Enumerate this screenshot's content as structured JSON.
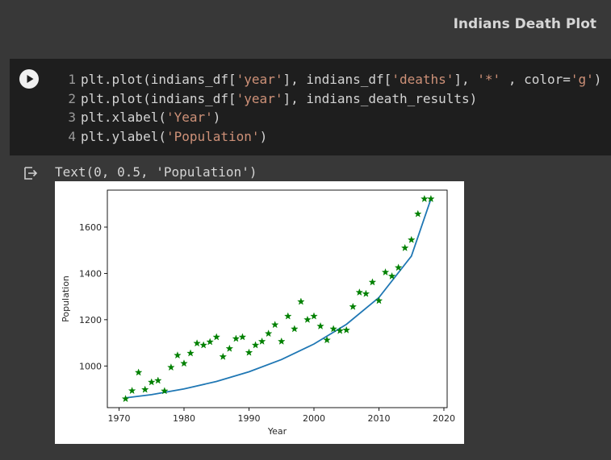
{
  "page": {
    "title": "Indians Death Plot"
  },
  "code_cell": {
    "lines": [
      {
        "n": "1",
        "parts": [
          [
            "plain",
            "plt.plot(indians_df["
          ],
          [
            "str",
            "'year'"
          ],
          [
            "plain",
            "], indians_df["
          ],
          [
            "str",
            "'deaths'"
          ],
          [
            "plain",
            "], "
          ],
          [
            "str",
            "'*'"
          ],
          [
            "plain",
            " , color="
          ],
          [
            "str",
            "'g'"
          ],
          [
            "plain",
            ")"
          ]
        ]
      },
      {
        "n": "2",
        "parts": [
          [
            "plain",
            "plt.plot(indians_df["
          ],
          [
            "str",
            "'year'"
          ],
          [
            "plain",
            "], indians_death_results)"
          ]
        ]
      },
      {
        "n": "3",
        "parts": [
          [
            "plain",
            "plt.xlabel("
          ],
          [
            "str",
            "'Year'"
          ],
          [
            "plain",
            ")"
          ]
        ]
      },
      {
        "n": "4",
        "parts": [
          [
            "plain",
            "plt.ylabel("
          ],
          [
            "str",
            "'Population'"
          ],
          [
            "plain",
            ")"
          ]
        ]
      }
    ]
  },
  "output": {
    "text": "Text(0, 0.5, 'Population')"
  },
  "chart_data": {
    "type": "scatter",
    "xlabel": "Year",
    "ylabel": "Population",
    "xlim": [
      1968.2,
      2020.5
    ],
    "ylim": [
      820,
      1760
    ],
    "xticks": [
      1970,
      1980,
      1990,
      2000,
      2010,
      2020
    ],
    "yticks": [
      1000,
      1200,
      1400,
      1600
    ],
    "grid": false,
    "series": [
      {
        "kind": "points",
        "marker": "*",
        "color": "#008000",
        "x": [
          1971,
          1972,
          1973,
          1974,
          1975,
          1976,
          1977,
          1978,
          1979,
          1980,
          1981,
          1982,
          1983,
          1984,
          1985,
          1986,
          1987,
          1988,
          1989,
          1990,
          1991,
          1992,
          1993,
          1994,
          1995,
          1996,
          1997,
          1998,
          1999,
          2000,
          2001,
          2002,
          2003,
          2004,
          2005,
          2006,
          2007,
          2008,
          2009,
          2010,
          2011,
          2012,
          2013,
          2014,
          2015,
          2016,
          2017,
          2018
        ],
        "y": [
          858,
          893,
          972,
          898,
          930,
          937,
          892,
          994,
          1046,
          1011,
          1055,
          1098,
          1090,
          1104,
          1125,
          1040,
          1075,
          1118,
          1125,
          1058,
          1090,
          1106,
          1140,
          1178,
          1106,
          1215,
          1160,
          1278,
          1200,
          1215,
          1172,
          1112,
          1160,
          1152,
          1155,
          1256,
          1318,
          1312,
          1362,
          1282,
          1405,
          1388,
          1425,
          1510,
          1545,
          1657,
          1722,
          1722
        ]
      },
      {
        "kind": "line",
        "color": "#1f77b4",
        "x": [
          1971,
          1975,
          1980,
          1985,
          1990,
          1995,
          2000,
          2005,
          2010,
          2015,
          2018
        ],
        "y": [
          862,
          876,
          901,
          933,
          975,
          1028,
          1095,
          1180,
          1296,
          1475,
          1722
        ]
      }
    ]
  }
}
